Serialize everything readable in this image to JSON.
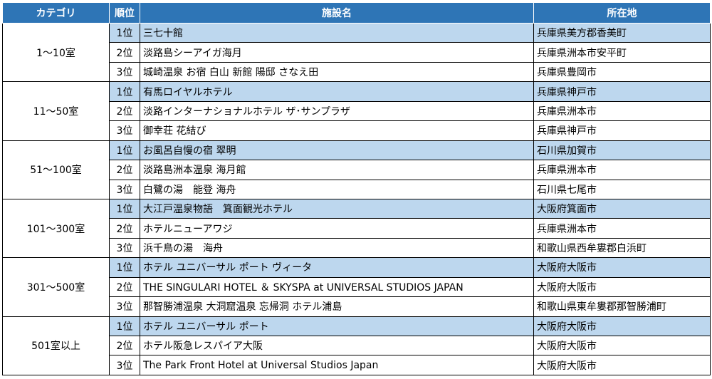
{
  "headers": [
    "カテゴリ",
    "順位",
    "施設名",
    "所在地"
  ],
  "groups": [
    {
      "category": "1～10室",
      "rows": [
        {
          "rank": "1位",
          "name": "三七十館",
          "location": "兵庫県美方郡香美町"
        },
        {
          "rank": "2位",
          "name": "淡路島シーアイガ海月",
          "location": "兵庫県洲本市安平町"
        },
        {
          "rank": "3位",
          "name": "城崎温泉 お宿 白山 新館 陽邸 さなえ田",
          "location": "兵庫県豊岡市"
        }
      ]
    },
    {
      "category": "11～50室",
      "rows": [
        {
          "rank": "1位",
          "name": "有馬ロイヤルホテル",
          "location": "兵庫県神戸市"
        },
        {
          "rank": "2位",
          "name": "淡路インターナショナルホテル ザ･サンプラザ",
          "location": "兵庫県洲本市"
        },
        {
          "rank": "3位",
          "name": "御幸荘 花結び",
          "location": "兵庫県神戸市"
        }
      ]
    },
    {
      "category": "51～100室",
      "rows": [
        {
          "rank": "1位",
          "name": "お風呂自慢の宿 翠明",
          "location": "石川県加賀市"
        },
        {
          "rank": "2位",
          "name": "淡路島洲本温泉 海月館",
          "location": "兵庫県洲本市"
        },
        {
          "rank": "3位",
          "name": "白鷺の湯　能登 海舟",
          "location": "石川県七尾市"
        }
      ]
    },
    {
      "category": "101～300室",
      "rows": [
        {
          "rank": "1位",
          "name": "大江戸温泉物語　箕面観光ホテル",
          "location": "大阪府箕面市"
        },
        {
          "rank": "2位",
          "name": "ホテルニューアワジ",
          "location": "兵庫県洲本市"
        },
        {
          "rank": "3位",
          "name": "浜千鳥の湯　海舟",
          "location": "和歌山県西牟婁郡白浜町"
        }
      ]
    },
    {
      "category": "301～500室",
      "rows": [
        {
          "rank": "1位",
          "name": "ホテル ユニバーサル ポート ヴィータ",
          "location": "大阪府大阪市"
        },
        {
          "rank": "2位",
          "name": "THE SINGULARI HOTEL ＆ SKYSPA at UNIVERSAL STUDIOS JAPAN",
          "location": "大阪府大阪市"
        },
        {
          "rank": "3位",
          "name": "那智勝浦温泉 大洞窟温泉 忘帰洞 ホテル浦島",
          "location": "和歌山県東牟婁郡那智勝浦町"
        }
      ]
    },
    {
      "category": "501室以上",
      "rows": [
        {
          "rank": "1位",
          "name": "ホテル ユニバーサル ポート",
          "location": "大阪府大阪市"
        },
        {
          "rank": "2位",
          "name": "ホテル阪急レスパイア大阪",
          "location": "大阪府大阪市"
        },
        {
          "rank": "3位",
          "name": "The Park Front Hotel at Universal Studios Japan",
          "location": "大阪府大阪市"
        }
      ]
    }
  ]
}
